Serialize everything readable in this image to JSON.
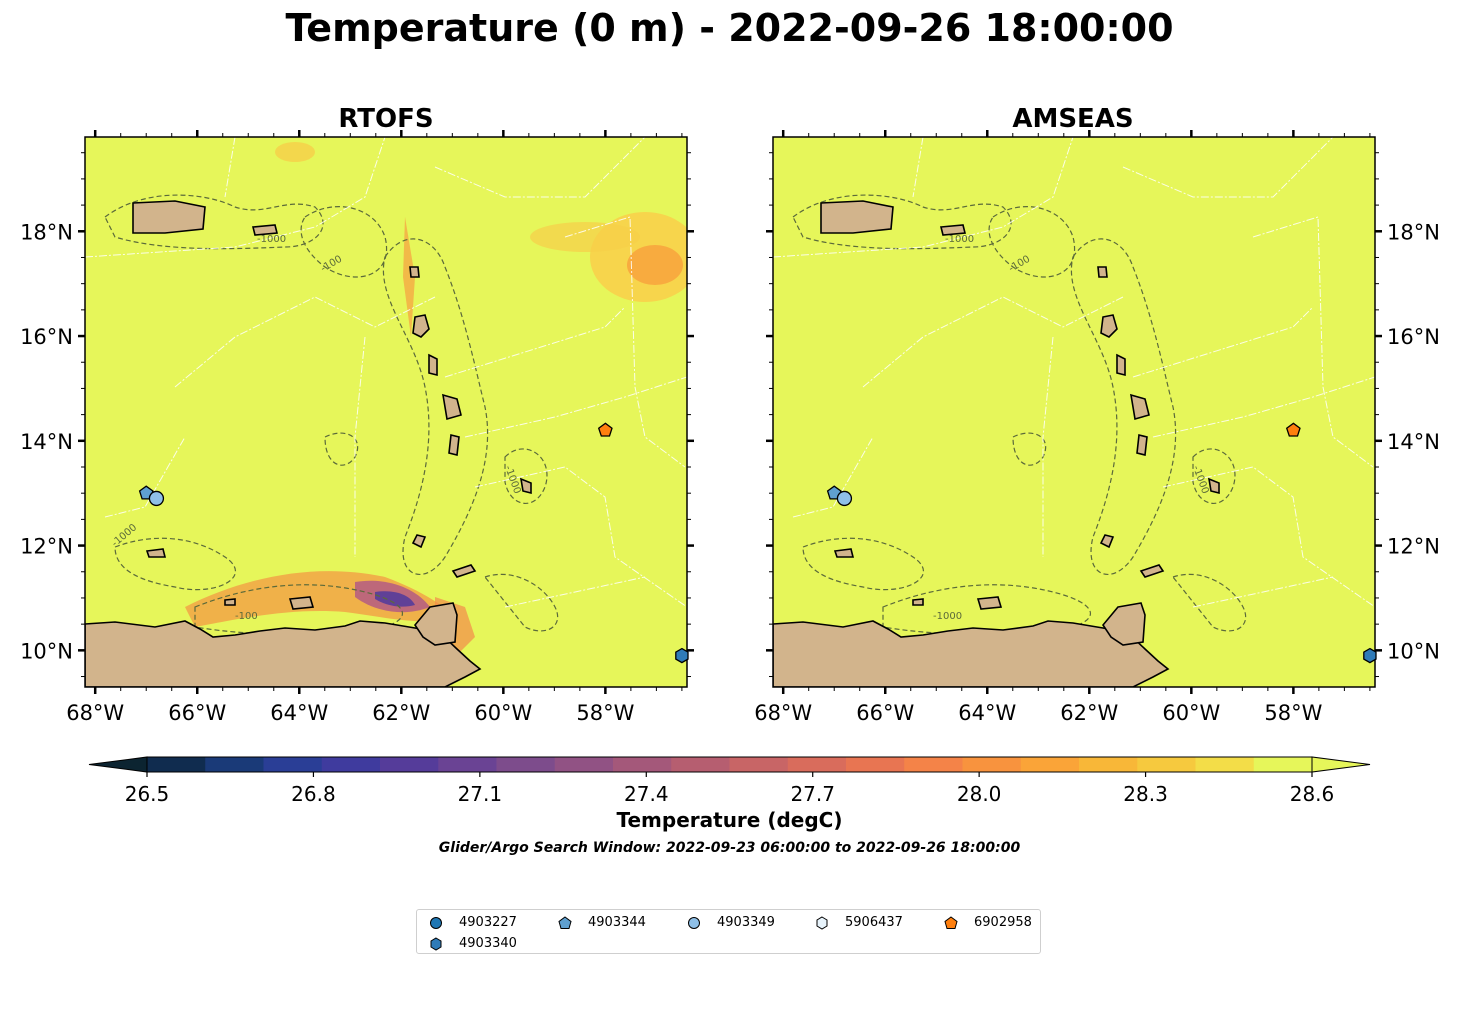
{
  "title": "Temperature (0 m) - 2022-09-26 18:00:00",
  "panels": [
    {
      "title": "RTOFS"
    },
    {
      "title": "AMSEAS"
    }
  ],
  "lon_ticks": [
    "68°W",
    "66°W",
    "64°W",
    "62°W",
    "60°W",
    "58°W"
  ],
  "lat_ticks": [
    "18°N",
    "16°N",
    "14°N",
    "12°N",
    "10°N"
  ],
  "contour_labels": [
    "-1000",
    "-100",
    "-1000",
    "-100",
    "-1000",
    "-1000",
    "-100",
    "-1000",
    "-1000"
  ],
  "colorbar": {
    "ticks": [
      "26.5",
      "26.8",
      "27.1",
      "27.4",
      "27.7",
      "28.0",
      "28.3",
      "28.6"
    ],
    "label": "Temperature (degC)",
    "min": 26.4,
    "max": 28.7,
    "colors": [
      "#0c2431",
      "#102c4f",
      "#1a3a78",
      "#2a3e96",
      "#3f3b9e",
      "#553c9a",
      "#6a4394",
      "#7d4c8c",
      "#915284",
      "#a4587a",
      "#b65e70",
      "#c86566",
      "#d96c5c",
      "#e87552",
      "#f48348",
      "#f8933e",
      "#faa438",
      "#f8b738",
      "#f6c93e",
      "#f3dd48",
      "#e6f65a"
    ]
  },
  "search_window": "Glider/Argo Search Window: 2022-09-23 06:00:00 to 2022-09-26 18:00:00",
  "map_extent": {
    "lon": [
      -68.2,
      -56.4
    ],
    "lat": [
      9.3,
      19.8
    ]
  },
  "colors": {
    "ocean": "#e6f65a",
    "land": "#d2b48c",
    "warm_patch": "#f8d24a"
  },
  "platforms": [
    {
      "id": "4903227",
      "marker": "circle",
      "color": "#1f77b4",
      "lon": null,
      "lat": null
    },
    {
      "id": "4903340",
      "marker": "hexagon",
      "color": "#2f7bb8",
      "lon": -56.5,
      "lat": 9.9
    },
    {
      "id": "4903344",
      "marker": "pentagon",
      "color": "#5fa0d0",
      "lon": -67.0,
      "lat": 13.0
    },
    {
      "id": "4903349",
      "marker": "circle",
      "color": "#8fc0e8",
      "lon": -66.8,
      "lat": 12.9
    },
    {
      "id": "5906437",
      "marker": "hexagon",
      "color": "#e8f4fc",
      "lon": null,
      "lat": null
    },
    {
      "id": "6902958",
      "marker": "pentagon",
      "color": "#ff7f0e",
      "lon": -58.0,
      "lat": 14.2
    }
  ]
}
